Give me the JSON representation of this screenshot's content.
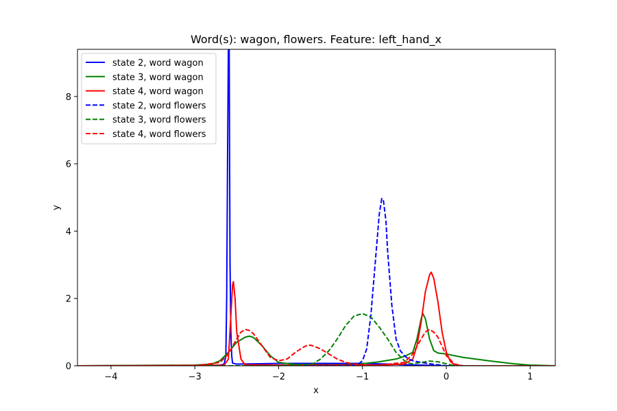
{
  "chart_data": {
    "type": "line",
    "title": "Word(s): wagon, flowers. Feature: left_hand_x",
    "xlabel": "x",
    "ylabel": "y",
    "xlim": [
      -4.4,
      1.3
    ],
    "ylim": [
      0,
      9.4
    ],
    "xticks": [
      -4,
      -3,
      -2,
      -1,
      0,
      1
    ],
    "xtick_labels": [
      "−4",
      "−3",
      "−2",
      "−1",
      "0",
      "1"
    ],
    "yticks": [
      0,
      2,
      4,
      6,
      8
    ],
    "ytick_labels": [
      "0",
      "2",
      "4",
      "6",
      "8"
    ],
    "grid": false,
    "legend_position": "top-left",
    "series": [
      {
        "name": "state 2, word wagon",
        "color": "#0000ff",
        "dash": "solid",
        "x": [
          -4.4,
          -3.0,
          -2.7,
          -2.65,
          -2.63,
          -2.62,
          -2.61,
          -2.6,
          -2.59,
          -2.585,
          -2.58,
          -2.57,
          -2.56,
          -2.55,
          -2.5,
          -2.0,
          -1.5,
          -1.0,
          -0.7,
          -0.5,
          -0.3,
          0.0,
          1.3
        ],
        "y": [
          0.0,
          0.01,
          0.02,
          0.05,
          0.3,
          2.0,
          6.0,
          9.4,
          9.4,
          6.0,
          3.0,
          1.0,
          0.3,
          0.08,
          0.05,
          0.07,
          0.07,
          0.07,
          0.05,
          0.03,
          0.02,
          0.0,
          0.0
        ]
      },
      {
        "name": "state 3, word wagon",
        "color": "#008000",
        "dash": "solid",
        "x": [
          -4.4,
          -3.0,
          -2.8,
          -2.7,
          -2.6,
          -2.5,
          -2.4,
          -2.35,
          -2.3,
          -2.2,
          -2.1,
          -2.0,
          -1.8,
          -1.5,
          -1.2,
          -1.0,
          -0.8,
          -0.6,
          -0.5,
          -0.4,
          -0.35,
          -0.3,
          -0.28,
          -0.25,
          -0.2,
          -0.15,
          -0.1,
          0.0,
          0.2,
          0.5,
          0.8,
          1.0,
          1.3
        ],
        "y": [
          0.0,
          0.02,
          0.05,
          0.15,
          0.4,
          0.7,
          0.85,
          0.88,
          0.84,
          0.6,
          0.3,
          0.1,
          0.04,
          0.03,
          0.03,
          0.06,
          0.12,
          0.2,
          0.28,
          0.4,
          0.8,
          1.4,
          1.55,
          1.4,
          0.8,
          0.45,
          0.38,
          0.35,
          0.25,
          0.15,
          0.06,
          0.02,
          0.0
        ]
      },
      {
        "name": "state 4, word wagon",
        "color": "#ff0000",
        "dash": "solid",
        "x": [
          -4.4,
          -3.0,
          -2.65,
          -2.6,
          -2.57,
          -2.55,
          -2.54,
          -2.52,
          -2.5,
          -2.45,
          -2.4,
          -2.0,
          -1.5,
          -1.0,
          -0.8,
          -0.5,
          -0.4,
          -0.35,
          -0.3,
          -0.25,
          -0.2,
          -0.18,
          -0.15,
          -0.1,
          -0.05,
          0.0,
          0.05,
          0.1,
          0.2,
          1.3
        ],
        "y": [
          0.0,
          0.01,
          0.02,
          0.2,
          1.5,
          2.4,
          2.5,
          2.0,
          1.0,
          0.2,
          0.03,
          0.02,
          0.02,
          0.02,
          0.02,
          0.05,
          0.2,
          0.6,
          1.3,
          2.2,
          2.7,
          2.78,
          2.6,
          1.9,
          1.0,
          0.4,
          0.12,
          0.03,
          0.0,
          0.0
        ]
      },
      {
        "name": "state 2, word flowers",
        "color": "#0000ff",
        "dash": "dashed",
        "x": [
          -4.4,
          -1.2,
          -1.05,
          -1.0,
          -0.95,
          -0.9,
          -0.85,
          -0.8,
          -0.77,
          -0.75,
          -0.72,
          -0.7,
          -0.65,
          -0.6,
          -0.55,
          -0.5,
          -0.45,
          -0.4,
          -0.3,
          -0.2,
          -0.1,
          0.0,
          1.3
        ],
        "y": [
          0.0,
          0.0,
          0.05,
          0.15,
          0.5,
          1.5,
          3.0,
          4.5,
          4.97,
          4.9,
          4.3,
          3.4,
          1.8,
          0.8,
          0.45,
          0.3,
          0.2,
          0.15,
          0.1,
          0.06,
          0.03,
          0.0,
          0.0
        ]
      },
      {
        "name": "state 3, word flowers",
        "color": "#008000",
        "dash": "dashed",
        "x": [
          -4.4,
          -2.0,
          -1.6,
          -1.5,
          -1.4,
          -1.3,
          -1.2,
          -1.1,
          -1.0,
          -0.9,
          -0.8,
          -0.7,
          -0.6,
          -0.5,
          -0.45,
          -0.4,
          -0.3,
          -0.2,
          -0.1,
          0.0,
          0.1,
          1.3
        ],
        "y": [
          0.0,
          0.0,
          0.05,
          0.2,
          0.45,
          0.8,
          1.2,
          1.48,
          1.55,
          1.45,
          1.15,
          0.8,
          0.4,
          0.15,
          0.08,
          0.06,
          0.1,
          0.14,
          0.12,
          0.06,
          0.0,
          0.0
        ]
      },
      {
        "name": "state 4, word flowers",
        "color": "#ff0000",
        "dash": "dashed",
        "x": [
          -4.4,
          -3.0,
          -2.7,
          -2.6,
          -2.5,
          -2.45,
          -2.4,
          -2.35,
          -2.3,
          -2.2,
          -2.1,
          -2.0,
          -1.9,
          -1.8,
          -1.7,
          -1.65,
          -1.6,
          -1.5,
          -1.4,
          -1.3,
          -1.2,
          -1.1,
          -1.0,
          -0.9,
          -0.8,
          -0.5,
          -0.4,
          -0.3,
          -0.25,
          -0.2,
          -0.15,
          -0.1,
          0.0,
          0.1,
          0.2,
          1.3
        ],
        "y": [
          0.0,
          0.0,
          0.1,
          0.35,
          0.8,
          1.0,
          1.08,
          1.05,
          0.95,
          0.6,
          0.25,
          0.15,
          0.2,
          0.4,
          0.56,
          0.62,
          0.6,
          0.5,
          0.35,
          0.2,
          0.1,
          0.05,
          0.03,
          0.02,
          0.02,
          0.1,
          0.35,
          0.8,
          1.0,
          1.08,
          1.0,
          0.85,
          0.3,
          0.05,
          0.0,
          0.0
        ]
      }
    ]
  }
}
